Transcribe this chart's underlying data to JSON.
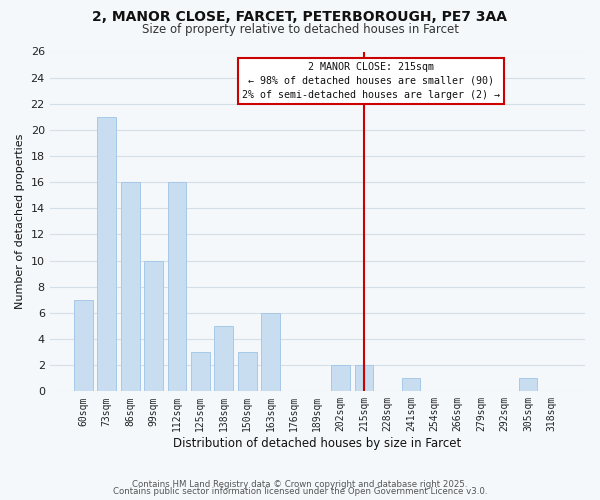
{
  "title_line1": "2, MANOR CLOSE, FARCET, PETERBOROUGH, PE7 3AA",
  "title_line2": "Size of property relative to detached houses in Farcet",
  "xlabel": "Distribution of detached houses by size in Farcet",
  "ylabel": "Number of detached properties",
  "bar_color": "#c8ddf0",
  "bar_edge_color": "#a8c8e8",
  "categories": [
    "60sqm",
    "73sqm",
    "86sqm",
    "99sqm",
    "112sqm",
    "125sqm",
    "138sqm",
    "150sqm",
    "163sqm",
    "176sqm",
    "189sqm",
    "202sqm",
    "215sqm",
    "228sqm",
    "241sqm",
    "254sqm",
    "266sqm",
    "279sqm",
    "292sqm",
    "305sqm",
    "318sqm"
  ],
  "values": [
    7,
    21,
    16,
    10,
    16,
    3,
    5,
    3,
    6,
    0,
    0,
    2,
    2,
    0,
    1,
    0,
    0,
    0,
    0,
    1,
    0
  ],
  "ylim": [
    0,
    26
  ],
  "yticks": [
    0,
    2,
    4,
    6,
    8,
    10,
    12,
    14,
    16,
    18,
    20,
    22,
    24,
    26
  ],
  "vline_x_idx": 12,
  "vline_color": "#cc0000",
  "annotation_title": "2 MANOR CLOSE: 215sqm",
  "annotation_line1": "← 98% of detached houses are smaller (90)",
  "annotation_line2": "2% of semi-detached houses are larger (2) →",
  "annotation_box_color": "#ffffff",
  "annotation_box_edge_color": "#cc0000",
  "grid_color": "#d4dfe8",
  "background_color": "#f5f8fb",
  "footnote1": "Contains HM Land Registry data © Crown copyright and database right 2025.",
  "footnote2": "Contains public sector information licensed under the Open Government Licence v3.0."
}
